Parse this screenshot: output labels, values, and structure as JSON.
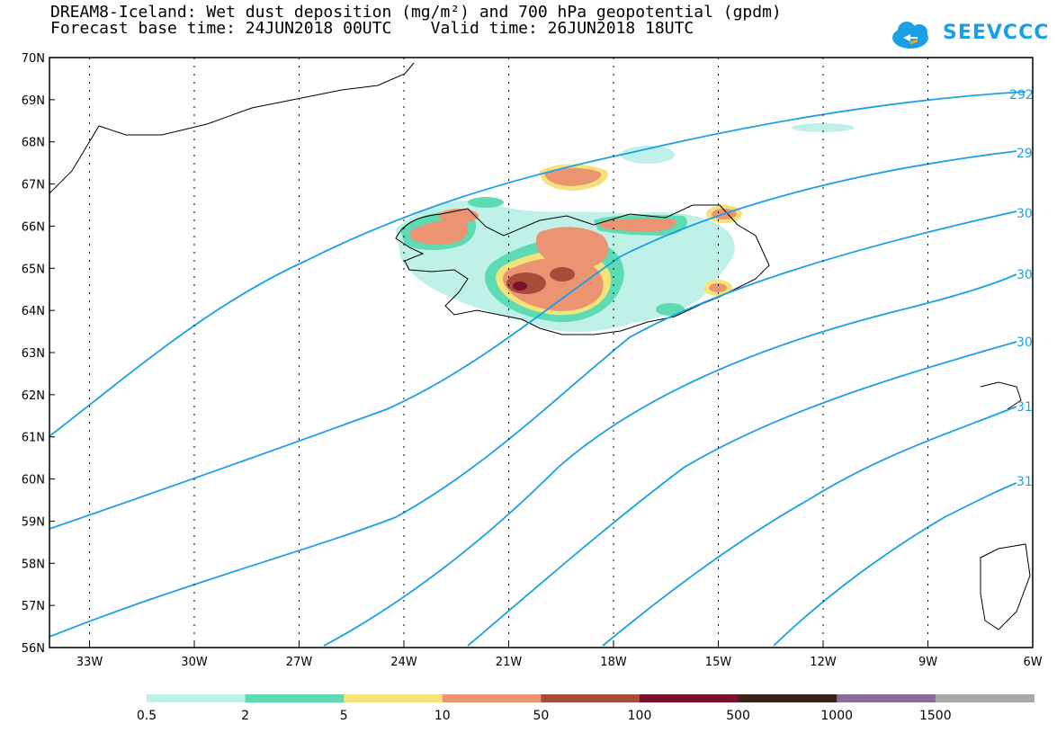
{
  "title": {
    "line1": "DREAM8-Iceland: Wet dust deposition (mg/m²) and 700 hPa geopotential (gpdm)",
    "line2": "Forecast base time: 24JUN2018 00UTC    Valid time: 26JUN2018 18UTC"
  },
  "logo": {
    "text": "SEEVCCC",
    "icon": "cloud-icon",
    "color": "#1aa0e6"
  },
  "axes": {
    "lat_labels": [
      "70N",
      "69N",
      "68N",
      "67N",
      "66N",
      "65N",
      "64N",
      "63N",
      "62N",
      "61N",
      "60N",
      "59N",
      "58N",
      "57N",
      "56N"
    ],
    "lon_labels": [
      "33W",
      "30W",
      "27W",
      "24W",
      "21W",
      "18W",
      "15W",
      "12W",
      "9W",
      "6W"
    ]
  },
  "contours": {
    "color": "#1aa0e6",
    "labels": [
      "292",
      "29",
      "30",
      "30",
      "30",
      "31",
      "31"
    ]
  },
  "legend": {
    "colors": [
      "#bff1e8",
      "#5ddcb3",
      "#f5e27a",
      "#ec9371",
      "#a84c3a",
      "#7b0f2c",
      "#3a2418",
      "#8a6b9a",
      "#a8a8a8"
    ],
    "labels": [
      "0.5",
      "2",
      "5",
      "10",
      "50",
      "100",
      "500",
      "1000",
      "1500"
    ]
  }
}
